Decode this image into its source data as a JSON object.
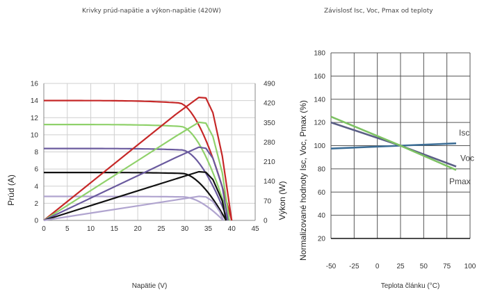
{
  "chart_data": [
    {
      "type": "line",
      "title": "Krivky prúd-napätie a výkon-napätie (420W)",
      "xlabel": "Napätie (V)",
      "ylabel": "Prúd (A)",
      "y2label": "Výkon (W)",
      "xlim": [
        0,
        45
      ],
      "ylim": [
        0,
        16
      ],
      "y2lim": [
        0,
        490
      ],
      "xticks": [
        "0",
        "5",
        "10",
        "15",
        "20",
        "25",
        "30",
        "35",
        "40",
        "45"
      ],
      "yticks": [
        "0",
        "2",
        "4",
        "6",
        "8",
        "10",
        "12",
        "14",
        "16"
      ],
      "y2ticks": [
        "0",
        "70",
        "140",
        "210",
        "280",
        "350",
        "420",
        "490"
      ],
      "grid": true,
      "series": [
        {
          "kind": "iv",
          "color": "#c62828",
          "isc": 14.0,
          "voc": 40.0,
          "knee": 0.72
        },
        {
          "kind": "iv",
          "color": "#8fd16a",
          "isc": 11.2,
          "voc": 39.5,
          "knee": 0.74
        },
        {
          "kind": "iv",
          "color": "#6a5a9e",
          "isc": 8.4,
          "voc": 39.2,
          "knee": 0.75
        },
        {
          "kind": "iv",
          "color": "#111111",
          "isc": 5.6,
          "voc": 38.8,
          "knee": 0.76
        },
        {
          "kind": "iv",
          "color": "#b0a4cf",
          "isc": 2.8,
          "voc": 38.2,
          "knee": 0.78
        },
        {
          "kind": "pv",
          "color": "#c62828",
          "x": [
            0,
            10,
            20,
            28,
            33,
            34.5,
            36,
            38,
            40
          ],
          "y": [
            0,
            135,
            270,
            378,
            440,
            438,
            385,
            230,
            0
          ]
        },
        {
          "kind": "pv",
          "color": "#8fd16a",
          "x": [
            0,
            10,
            20,
            28,
            33,
            34.5,
            36,
            38,
            39.5
          ],
          "y": [
            0,
            107,
            214,
            300,
            351,
            348,
            300,
            170,
            0
          ]
        },
        {
          "kind": "pv",
          "color": "#6a5a9e",
          "x": [
            0,
            10,
            20,
            28,
            33,
            34.5,
            36,
            38,
            39.2
          ],
          "y": [
            0,
            80,
            160,
            224,
            262,
            258,
            222,
            120,
            0
          ]
        },
        {
          "kind": "pv",
          "color": "#111111",
          "x": [
            0,
            10,
            20,
            28,
            33,
            34.5,
            36,
            38,
            38.8
          ],
          "y": [
            0,
            53,
            106,
            148,
            174,
            172,
            146,
            70,
            0
          ]
        },
        {
          "kind": "pv",
          "color": "#b0a4cf",
          "x": [
            0,
            10,
            20,
            28,
            33,
            34.5,
            36,
            37.5,
            38.2
          ],
          "y": [
            0,
            26,
            52,
            73,
            86,
            84,
            68,
            30,
            0
          ]
        }
      ]
    },
    {
      "type": "line",
      "title": "Závislosť Isc, Voc, Pmax od teploty",
      "xlabel": "Teplota článku (°C)",
      "ylabel": "Normalizované hodnoty Isc, Voc, Pmax (%)",
      "xlim": [
        -50,
        100
      ],
      "ylim": [
        0,
        180
      ],
      "xticks": [
        "-50",
        "-25",
        "0",
        "25",
        "50",
        "75",
        "100"
      ],
      "yticks": [
        "20",
        "40",
        "60",
        "80",
        "100",
        "120",
        "140",
        "160",
        "180"
      ],
      "grid": true,
      "series": [
        {
          "name": "Isc",
          "color": "#3d6e96",
          "x": [
            -50,
            25,
            85
          ],
          "y": [
            97.5,
            100,
            102
          ]
        },
        {
          "name": "Voc",
          "color": "#5b5f86",
          "x": [
            -50,
            25,
            85
          ],
          "y": [
            120,
            100,
            82
          ]
        },
        {
          "name": "Pmax",
          "color": "#7dc263",
          "x": [
            -50,
            25,
            85
          ],
          "y": [
            125,
            100,
            79
          ]
        }
      ],
      "annotations": [
        "Isc",
        "Voc",
        "Pmax"
      ]
    }
  ]
}
